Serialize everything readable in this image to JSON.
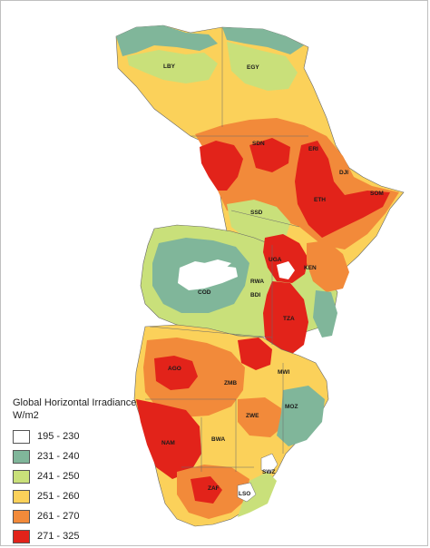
{
  "legend": {
    "title": "Global Horizontal Irradiance",
    "unit": "W/m2",
    "classes": [
      {
        "label": "195 - 230",
        "color": "#ffffff"
      },
      {
        "label": "231 - 240",
        "color": "#80b69a"
      },
      {
        "label": "241 - 250",
        "color": "#c9e07a"
      },
      {
        "label": "251 - 260",
        "color": "#fbd15a"
      },
      {
        "label": "261 - 270",
        "color": "#f28a3a"
      },
      {
        "label": "271 - 325",
        "color": "#e2231a"
      }
    ]
  },
  "countries": {
    "LBY": "LBY",
    "EGY": "EGY",
    "SDN": "SDN",
    "ERI": "ERI",
    "DJI": "DJI",
    "ETH": "ETH",
    "SOM": "SOM",
    "SSD": "SSD",
    "UGA": "UGA",
    "KEN": "KEN",
    "RWA": "RWA",
    "BDI": "BDI",
    "COD": "COD",
    "TZA": "TZA",
    "MWI": "MWI",
    "AGO": "AGO",
    "ZMB": "ZMB",
    "MOZ": "MOZ",
    "ZWE": "ZWE",
    "NAM": "NAM",
    "BWA": "BWA",
    "SWZ": "SWZ",
    "ZAF": "ZAF",
    "LSO": "LSO"
  }
}
